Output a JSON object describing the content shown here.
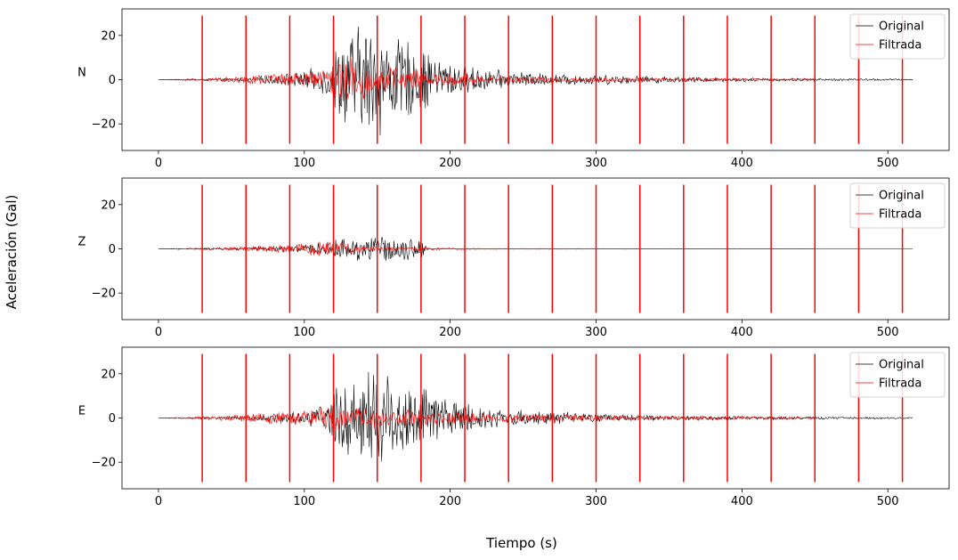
{
  "figure": {
    "ylabel": "Aceleración (Gal)",
    "xlabel": "Tiempo (s)"
  },
  "legend": {
    "original_label": "Original",
    "filtered_label": "Filtrada",
    "original_color": "#000000",
    "filtered_color": "#ff0000",
    "placement": "top-right"
  },
  "chart_data": [
    {
      "type": "line",
      "title": "",
      "channel_label": "N",
      "xlim": [
        -25,
        542
      ],
      "ylim": [
        -32,
        32
      ],
      "xticks": [
        0,
        100,
        200,
        300,
        400,
        500
      ],
      "yticks": [
        -20,
        0,
        20
      ],
      "grid": false,
      "series": [
        {
          "name": "Original",
          "color": "#000000",
          "envelope": {
            "x": [
              0,
              20,
              60,
              100,
              115,
              125,
              140,
              148,
              160,
              175,
              190,
              210,
              240,
              270,
              300,
              330,
              360,
              400,
              450,
              517
            ],
            "y": [
              0,
              0.3,
              1,
              4,
              8,
              22,
              28,
              30,
              22,
              18,
              12,
              7,
              4,
              3,
              2.5,
              2,
              1.5,
              1,
              0.7,
              0.4
            ]
          }
        },
        {
          "name": "Filtrada",
          "color": "#ff0000",
          "envelope": {
            "x": [
              0,
              30,
              60,
              90,
              110,
              120,
              130,
              150,
              180,
              210,
              240,
              270,
              300,
              330,
              360,
              400,
              450
            ],
            "y": [
              0,
              0.8,
              2,
              3,
              5,
              10,
              13,
              7,
              4,
              3,
              2,
              1.5,
              1.2,
              1,
              0.8,
              0.7,
              0.5
            ]
          }
        }
      ],
      "markers": {
        "x": [
          30,
          60,
          90,
          120,
          150,
          180,
          210,
          240,
          270,
          300,
          330,
          360,
          390,
          420,
          450,
          480,
          510
        ],
        "ymin": -29,
        "ymax": 29,
        "color": "#ff0000"
      }
    },
    {
      "type": "line",
      "title": "",
      "channel_label": "Z",
      "xlim": [
        -25,
        542
      ],
      "ylim": [
        -32,
        32
      ],
      "xticks": [
        0,
        100,
        200,
        300,
        400,
        500
      ],
      "yticks": [
        -20,
        0,
        20
      ],
      "grid": false,
      "series": [
        {
          "name": "Original",
          "color": "#000000",
          "envelope": {
            "x": [
              0,
              20,
              60,
              100,
              120,
              130,
              145,
              160,
              175,
              182,
              185,
              517
            ],
            "y": [
              0,
              0.3,
              0.8,
              2,
              4,
              6,
              7,
              6,
              6,
              4,
              0,
              0
            ]
          }
        },
        {
          "name": "Filtrada",
          "color": "#ff0000",
          "envelope": {
            "x": [
              0,
              30,
              60,
              90,
              100,
              110,
              120,
              130,
              150,
              180,
              210,
              240,
              300,
              450
            ],
            "y": [
              0,
              0.5,
              1.2,
              2,
              3,
              4,
              4.5,
              3,
              1.5,
              0.8,
              0.4,
              0.3,
              0.2,
              0.1
            ]
          }
        }
      ],
      "markers": {
        "x": [
          30,
          60,
          90,
          120,
          150,
          180,
          210,
          240,
          270,
          300,
          330,
          360,
          390,
          420,
          450,
          480,
          510
        ],
        "ymin": -29,
        "ymax": 29,
        "color": "#ff0000"
      }
    },
    {
      "type": "line",
      "title": "",
      "channel_label": "E",
      "xlim": [
        -25,
        542
      ],
      "ylim": [
        -32,
        32
      ],
      "xticks": [
        0,
        100,
        200,
        300,
        400,
        500
      ],
      "yticks": [
        -20,
        0,
        20
      ],
      "grid": false,
      "series": [
        {
          "name": "Original",
          "color": "#000000",
          "envelope": {
            "x": [
              0,
              20,
              60,
              100,
              115,
              125,
              140,
              150,
              165,
              180,
              200,
              215,
              240,
              270,
              300,
              330,
              400,
              450,
              517
            ],
            "y": [
              0,
              0.3,
              1,
              3,
              8,
              18,
              26,
              27,
              20,
              16,
              10,
              7,
              4,
              3,
              2,
              1.5,
              1,
              0.7,
              0.4
            ]
          }
        },
        {
          "name": "Filtrada",
          "color": "#ff0000",
          "envelope": {
            "x": [
              0,
              30,
              60,
              90,
              110,
              120,
              130,
              150,
              180,
              210,
              240,
              270,
              300,
              330,
              360,
              400,
              450
            ],
            "y": [
              0,
              0.8,
              2,
              3.5,
              5,
              7,
              6,
              5,
              4,
              3,
              2.5,
              2,
              1.5,
              1.2,
              1,
              0.8,
              0.5
            ]
          }
        }
      ],
      "markers": {
        "x": [
          30,
          60,
          90,
          120,
          150,
          180,
          210,
          240,
          270,
          300,
          330,
          360,
          390,
          420,
          450,
          480,
          510
        ],
        "ymin": -29,
        "ymax": 29,
        "color": "#ff0000"
      }
    }
  ]
}
